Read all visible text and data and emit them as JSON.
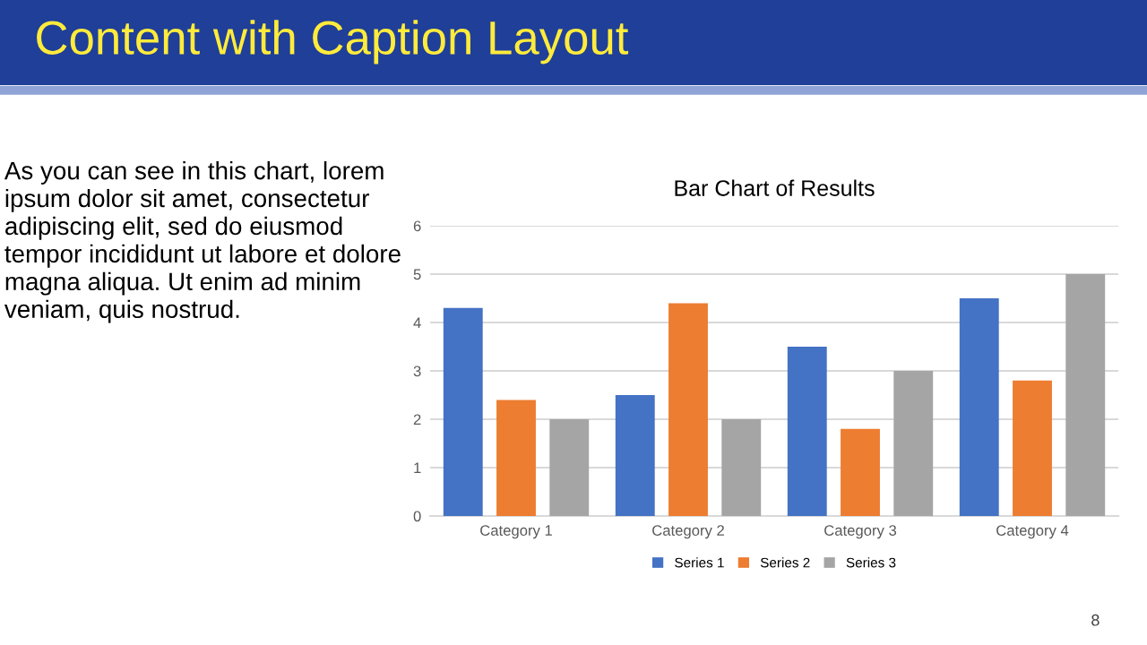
{
  "chart_data": [
    {
      "type": "other",
      "title": "Content with Caption Layout",
      "annotations": [
        "As you can see in this chart, lorem ipsum dolor sit amet, consectetur adipiscing elit, sed do eiusmod tempor incididunt ut labore et dolore magna aliqua. Ut enim ad minim veniam, quis nostrud.",
        "8"
      ]
    },
    {
      "type": "bar",
      "title": "Bar Chart of Results",
      "categories": [
        "Category 1",
        "Category 2",
        "Category 3",
        "Category 4"
      ],
      "series": [
        {
          "name": "Series 1",
          "color": "#4472c4",
          "values": [
            4.3,
            2.5,
            3.5,
            4.5
          ]
        },
        {
          "name": "Series 2",
          "color": "#ed7d31",
          "values": [
            2.4,
            4.4,
            1.8,
            2.8
          ]
        },
        {
          "name": "Series 3",
          "color": "#a5a5a5",
          "values": [
            2,
            2,
            3,
            5
          ]
        }
      ],
      "ylim": [
        0,
        6
      ],
      "yticks": [
        0,
        1,
        2,
        3,
        4,
        5,
        6
      ],
      "grid": "y",
      "legend": "bottom"
    }
  ]
}
